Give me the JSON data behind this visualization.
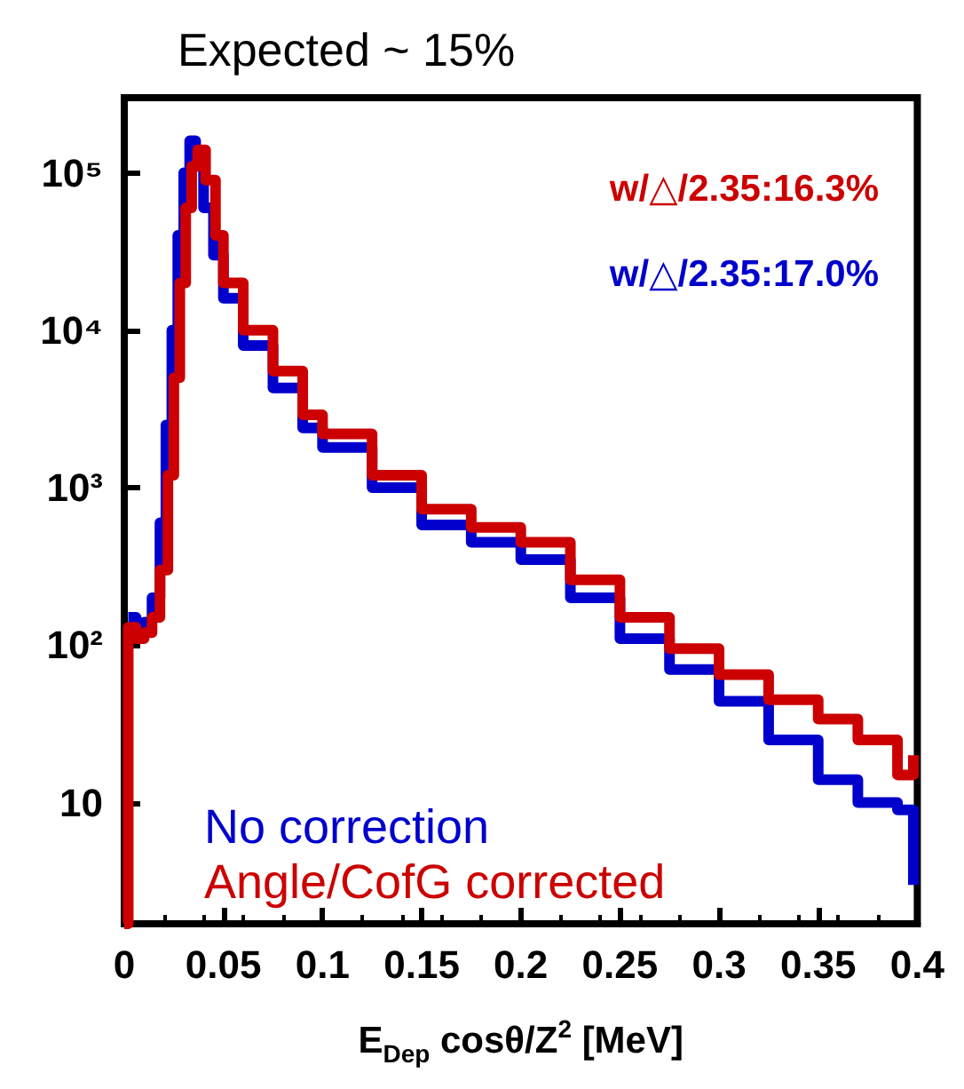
{
  "chart_data": {
    "type": "step",
    "title": "Expected ~ 15%",
    "xlabel": "E$_{Dep}$ cosθ/Z$^{2}$ [MeV]",
    "xlim": [
      0,
      0.4
    ],
    "xticks": [
      0,
      0.05,
      0.1,
      0.15,
      0.2,
      0.25,
      0.3,
      0.35,
      0.4
    ],
    "ylim": [
      1.7,
      300000
    ],
    "yticks": [
      {
        "value": 10,
        "label": "10"
      },
      {
        "value": 100,
        "label": "10²"
      },
      {
        "value": 1000,
        "label": "10³"
      },
      {
        "value": 10000,
        "label": "10⁴"
      },
      {
        "value": 100000,
        "label": "10⁵"
      }
    ],
    "log": "y",
    "legend": "bottom left",
    "grid": false,
    "annotations": [
      "w/△/2.35:16.3%",
      "w/△/2.35:17.0%"
    ],
    "series": [
      {
        "name": "No correction",
        "color": "#0000cc",
        "x": [
          0.002,
          0.006,
          0.01,
          0.014,
          0.018,
          0.021,
          0.024,
          0.027,
          0.03,
          0.033,
          0.036,
          0.04,
          0.045,
          0.05,
          0.06,
          0.075,
          0.09,
          0.1,
          0.125,
          0.15,
          0.175,
          0.2,
          0.225,
          0.25,
          0.275,
          0.3,
          0.325,
          0.35,
          0.37,
          0.39,
          0.398
        ],
        "values": [
          150,
          130,
          140,
          200,
          600,
          2500,
          10000,
          40000,
          100000,
          160000,
          120000,
          60000,
          30000,
          16000,
          8000,
          4300,
          2400,
          1800,
          1000,
          580,
          450,
          350,
          200,
          110,
          70,
          44,
          25,
          14,
          10,
          9,
          3
        ]
      },
      {
        "name": "Angle/CofG corrected",
        "color": "#cc0000",
        "x": [
          0,
          0.002,
          0.006,
          0.01,
          0.014,
          0.018,
          0.022,
          0.025,
          0.028,
          0.031,
          0.034,
          0.037,
          0.041,
          0.046,
          0.05,
          0.06,
          0.075,
          0.09,
          0.1,
          0.125,
          0.15,
          0.175,
          0.2,
          0.225,
          0.25,
          0.275,
          0.3,
          0.325,
          0.35,
          0.37,
          0.39,
          0.398
        ],
        "values": [
          1.7,
          130,
          110,
          120,
          150,
          300,
          1200,
          5000,
          20000,
          60000,
          110000,
          140000,
          90000,
          40000,
          20000,
          10000,
          5500,
          2900,
          2200,
          1200,
          730,
          560,
          450,
          260,
          150,
          95,
          65,
          45,
          34,
          25,
          15,
          20
        ]
      }
    ]
  }
}
